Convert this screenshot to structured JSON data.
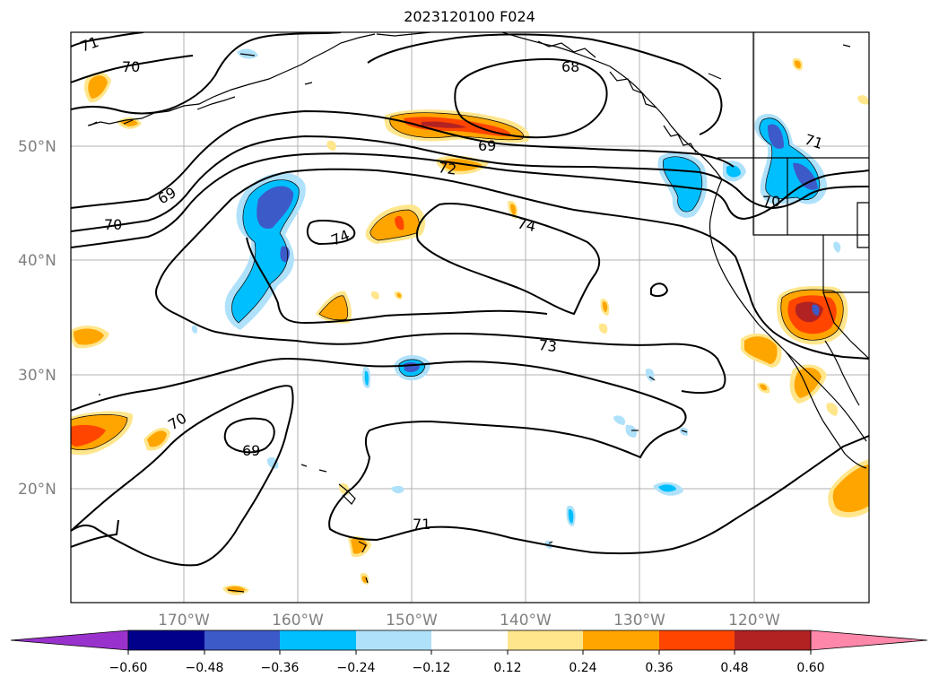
{
  "title": "2023120100 F024",
  "latitude_labels": [
    "50°N",
    "40°N",
    "30°N",
    "20°N"
  ],
  "longitude_labels": [
    "170°W",
    "160°W",
    "150°W",
    "140°W",
    "130°W",
    "120°W"
  ],
  "contour_labels": [
    "71",
    "70",
    "68",
    "69",
    "72",
    "74",
    "69",
    "70",
    "71",
    "70",
    "73",
    "70",
    "69",
    "71"
  ],
  "colorbar": {
    "extend": "both",
    "ticks": [
      "−0.60",
      "−0.48",
      "−0.36",
      "−0.24",
      "−0.12",
      "0.12",
      "0.24",
      "0.36",
      "0.48",
      "0.60"
    ],
    "colors": [
      "#9932cc",
      "#00008b",
      "#3c5ac8",
      "#00bfff",
      "#afe1fa",
      "#ffffff",
      "#ffe68c",
      "#ffa500",
      "#ff4500",
      "#b22222",
      "#ff88aa"
    ]
  },
  "fill_colors": {
    "neg_1": "#afe1fa",
    "neg_2": "#00bfff",
    "neg_3": "#3c5ac8",
    "pos_1": "#ffe68c",
    "pos_2": "#ffa500",
    "pos_3": "#ff4500",
    "pos_4": "#b22222"
  }
}
